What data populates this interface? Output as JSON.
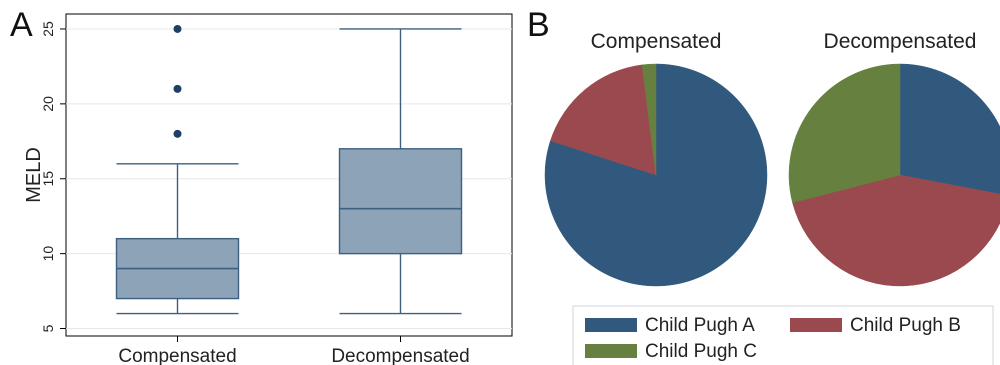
{
  "panels": {
    "a_label": "A",
    "b_label": "B"
  },
  "colors": {
    "box_fill": "#8DA3B8",
    "box_line": "#3D5F80",
    "outlier": "#1F3F66",
    "grid": "#E4E8ED",
    "child_pugh_a": "#31597E",
    "child_pugh_b": "#9A4A4F",
    "child_pugh_c": "#66813F"
  },
  "chart_data": [
    {
      "type": "box",
      "panel": "A",
      "ylabel": "MELD",
      "ylim": [
        4.5,
        26
      ],
      "yticks": [
        5,
        10,
        15,
        20,
        25
      ],
      "grid": true,
      "categories": [
        "Compensated",
        "Decompensated"
      ],
      "boxes": [
        {
          "name": "Compensated",
          "min": 6,
          "q1": 7,
          "median": 9,
          "q3": 11,
          "max": 16,
          "outliers": [
            18,
            21,
            25
          ]
        },
        {
          "name": "Decompensated",
          "min": 6,
          "q1": 10,
          "median": 13,
          "q3": 17,
          "max": 25,
          "outliers": []
        }
      ]
    },
    {
      "type": "pie",
      "panel": "B",
      "title": "Compensated",
      "labels": [
        "Child Pugh A",
        "Child Pugh B",
        "Child Pugh C"
      ],
      "values": [
        80,
        18,
        2
      ]
    },
    {
      "type": "pie",
      "panel": "B",
      "title": "Decompensated",
      "labels": [
        "Child Pugh A",
        "Child Pugh B",
        "Child Pugh C"
      ],
      "values": [
        28,
        43,
        29
      ]
    }
  ],
  "legend": {
    "position": "bottom",
    "items": [
      "Child Pugh A",
      "Child Pugh B",
      "Child Pugh C"
    ]
  }
}
